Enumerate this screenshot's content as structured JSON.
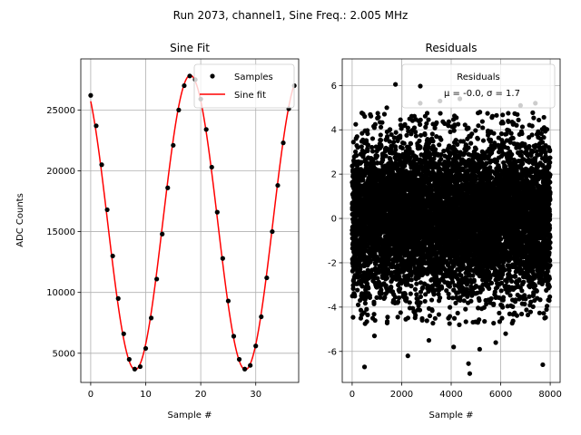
{
  "figure": {
    "suptitle": "Run 2073, channel1, Sine Freq.: 2.005 MHz"
  },
  "chart_data": [
    {
      "type": "line",
      "title": "Sine Fit",
      "xlabel": "Sample #",
      "ylabel": "ADC Counts",
      "xlim": [
        -1.8,
        37.8
      ],
      "ylim": [
        2600,
        29200
      ],
      "xticks": [
        0,
        10,
        20,
        30
      ],
      "yticks": [
        5000,
        10000,
        15000,
        20000,
        25000
      ],
      "grid": true,
      "legend": {
        "placement": "top-right",
        "entries": [
          "Samples",
          "Sine fit"
        ]
      },
      "series": [
        {
          "name": "Samples",
          "style": "points",
          "color": "#000000",
          "x": [
            0,
            1,
            2,
            3,
            4,
            5,
            6,
            7,
            8,
            9,
            10,
            11,
            12,
            13,
            14,
            15,
            16,
            17,
            18,
            19,
            20,
            21,
            22,
            23,
            24,
            25,
            26,
            27,
            28,
            29,
            30,
            31,
            32,
            33,
            34,
            35,
            36,
            37
          ],
          "y": [
            26200,
            23700,
            20500,
            16800,
            13000,
            9500,
            6600,
            4500,
            3700,
            3900,
            5400,
            7900,
            11100,
            14800,
            18600,
            22100,
            25000,
            27000,
            27800,
            27500,
            25900,
            23400,
            20300,
            16600,
            12800,
            9300,
            6400,
            4500,
            3700,
            4000,
            5600,
            8000,
            11200,
            15000,
            18800,
            22300,
            25100,
            27000
          ]
        },
        {
          "name": "Sine fit",
          "style": "line",
          "color": "#ff0000",
          "function": {
            "offset": 15750,
            "amplitude": 12100,
            "period": 20.02,
            "peak_at": 18.1
          },
          "x_range": [
            0,
            37
          ]
        }
      ]
    },
    {
      "type": "scatter",
      "title": "Residuals",
      "xlabel": "Sample #",
      "ylabel": "",
      "xlim": [
        -400,
        8400
      ],
      "ylim": [
        -7.4,
        7.2
      ],
      "xticks": [
        0,
        2000,
        4000,
        6000,
        8000
      ],
      "yticks": [
        -6,
        -4,
        -2,
        0,
        2,
        4,
        6
      ],
      "grid": true,
      "legend": {
        "placement": "top-right",
        "title": "Residuals",
        "entries": [
          "μ = -0.0, σ = 1.7"
        ]
      },
      "series": [
        {
          "name": "Residuals",
          "n_points": 8000,
          "mean": 0.0,
          "std": 1.7,
          "x_range": [
            0,
            7999
          ],
          "color": "#000000",
          "outliers": [
            {
              "x": 500,
              "y": -6.7
            },
            {
              "x": 1750,
              "y": 6.05
            },
            {
              "x": 2250,
              "y": -6.2
            },
            {
              "x": 4750,
              "y": -7.0
            },
            {
              "x": 4700,
              "y": -6.55
            },
            {
              "x": 7700,
              "y": -6.6
            },
            {
              "x": 3550,
              "y": 5.3
            },
            {
              "x": 5150,
              "y": -5.9
            },
            {
              "x": 6800,
              "y": 5.1
            },
            {
              "x": 900,
              "y": -5.3
            },
            {
              "x": 3100,
              "y": -5.5
            },
            {
              "x": 4350,
              "y": 5.4
            },
            {
              "x": 5800,
              "y": -5.6
            },
            {
              "x": 2750,
              "y": 5.2
            },
            {
              "x": 6200,
              "y": -5.2
            },
            {
              "x": 1400,
              "y": 5.0
            },
            {
              "x": 7400,
              "y": 5.2
            },
            {
              "x": 4100,
              "y": -5.8
            }
          ]
        }
      ]
    }
  ]
}
